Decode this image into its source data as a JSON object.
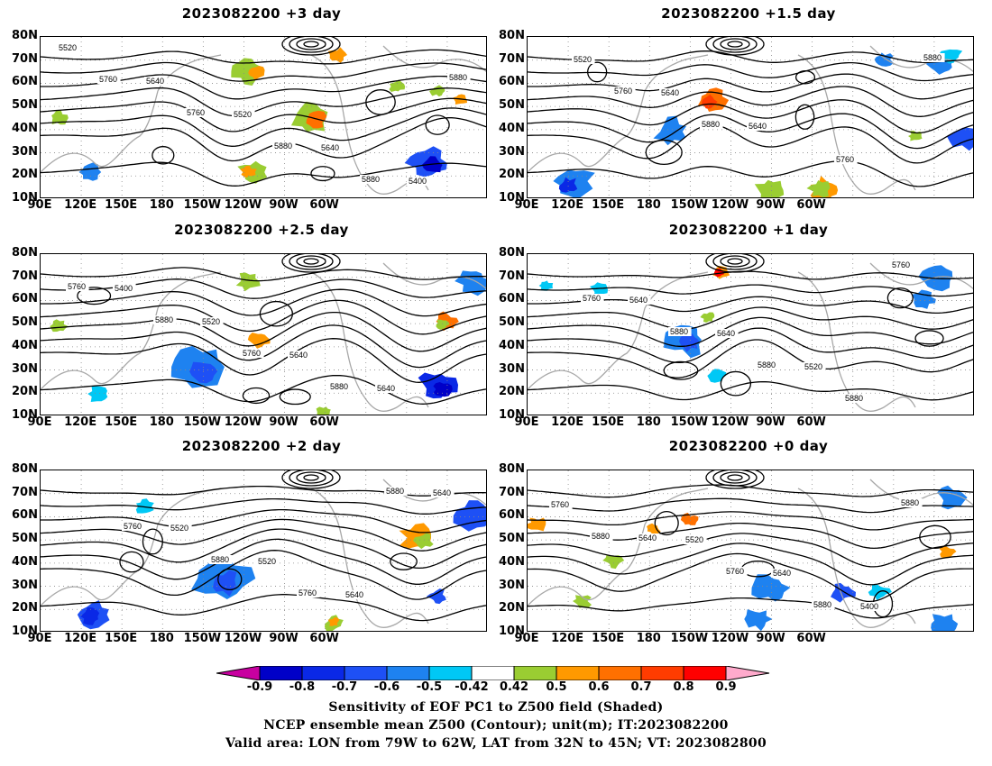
{
  "panels": [
    {
      "title": "2023082200 +3 day"
    },
    {
      "title": "2023082200 +1.5 day"
    },
    {
      "title": "2023082200 +2.5 day"
    },
    {
      "title": "2023082200 +1 day"
    },
    {
      "title": "2023082200 +2 day"
    },
    {
      "title": "2023082200 +0 day"
    }
  ],
  "lat_labels": [
    "80N",
    "70N",
    "60N",
    "50N",
    "40N",
    "30N",
    "20N",
    "10N"
  ],
  "lon_labels": [
    "90E",
    "120E",
    "150E",
    "180",
    "150W",
    "120W",
    "90W",
    "60W"
  ],
  "contour_labels": {
    "p0": [
      "5520",
      "5640",
      "5520",
      "5640",
      "5400",
      "5760",
      "5760",
      "5880",
      "5880",
      "5880"
    ],
    "p1": [
      "5520",
      "5640",
      "5640",
      "5760",
      "5880",
      "5760",
      "5880"
    ],
    "p2": [
      "5400",
      "5520",
      "5640",
      "5640",
      "5760",
      "5880",
      "5760",
      "5880"
    ],
    "p3": [
      "5640",
      "5640",
      "5520",
      "5760",
      "5760",
      "5880",
      "5880",
      "5880"
    ],
    "p4": [
      "5520",
      "5520",
      "5640",
      "5640",
      "5760",
      "5880",
      "5760",
      "5880"
    ],
    "p5": [
      "5520",
      "5640",
      "5400",
      "5760",
      "5640",
      "5760",
      "5880",
      "5880",
      "5880"
    ]
  },
  "colorbar": {
    "labels": [
      "-0.9",
      "-0.8",
      "-0.7",
      "-0.6",
      "-0.5",
      "-0.42",
      "0.42",
      "0.5",
      "0.6",
      "0.7",
      "0.8",
      "0.9"
    ],
    "colors": [
      "#0000c8",
      "#0a28e6",
      "#1e50f5",
      "#1e82f0",
      "#00c8f5",
      "#ffffff",
      "#9acd32",
      "#ff9900",
      "#ff7000",
      "#ff3c00",
      "#ff0000"
    ],
    "left_arrow_color": "#c800a0",
    "right_arrow_color": "#ffaacc"
  },
  "footer": {
    "line1": "Sensitivity of EOF PC1 to Z500 field (Shaded)",
    "line2": "NCEP ensemble mean Z500 (Contour); unit(m); IT:2023082200",
    "line3": "Valid area: LON from 79W to 62W, LAT from 32N to 45N; VT: 2023082800"
  }
}
